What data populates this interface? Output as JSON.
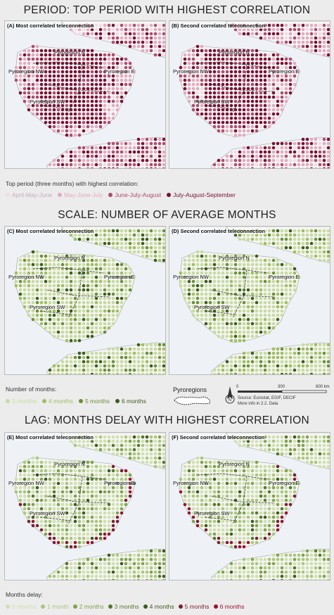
{
  "sections": {
    "period": {
      "title": "PERIOD: TOP PERIOD WITH HIGHEST CORRELATION",
      "panel_a": "(A) Most correlated teleconnection",
      "panel_b": "(B) Second correlated teleconnection",
      "legend_title": "Top period (three months) with highest correlation:",
      "legend": [
        {
          "label": "April-May-June",
          "color": "#f0dce8"
        },
        {
          "label": "May-June-July",
          "color": "#e3a9c2"
        },
        {
          "label": "June-July-August",
          "color": "#b04a70"
        },
        {
          "label": "July-August-September",
          "color": "#7a0f35"
        }
      ]
    },
    "scale": {
      "title": "SCALE: NUMBER OF AVERAGE MONTHS",
      "panel_c": "(C) Most correlated teleconnection",
      "panel_d": "(D) Second correlated teleconnection",
      "legend_title": "Number of months:",
      "legend": [
        {
          "label": "3 months",
          "color": "#c7dba0"
        },
        {
          "label": "4 months",
          "color": "#9fbe5e"
        },
        {
          "label": "5 months",
          "color": "#6a9136"
        },
        {
          "label": "6 months",
          "color": "#3a5e1a"
        }
      ],
      "regions_label": "Pyroregions",
      "scalebar": {
        "ticks": [
          "0",
          "300",
          "600 km"
        ]
      },
      "source": "Source: Eurostat, EGIF, DECIF",
      "more_info": "More info in 2.2. Data"
    },
    "lag": {
      "title": "LAG: MONTHS DELAY WITH HIGHEST CORRELATION",
      "panel_e": "(E) Most correlated teleconnection",
      "panel_f": "(F) Second correlated teleconnection",
      "legend_title": "Months delay:",
      "legend": [
        {
          "label": "0 months",
          "color": "#cfe0b0"
        },
        {
          "label": "1 month",
          "color": "#a9c77a"
        },
        {
          "label": "2 months",
          "color": "#7fa34a"
        },
        {
          "label": "3 months",
          "color": "#55782a"
        },
        {
          "label": "4 months",
          "color": "#3d5a1e"
        },
        {
          "label": "5 months",
          "color": "#7a1e34"
        },
        {
          "label": "6 months",
          "color": "#9a1232"
        }
      ]
    }
  },
  "regions": {
    "n": "Pyroregion N",
    "nw": "Pyroregion NW",
    "e": "Pyroregion E",
    "sw": "Pyroregion SW"
  }
}
